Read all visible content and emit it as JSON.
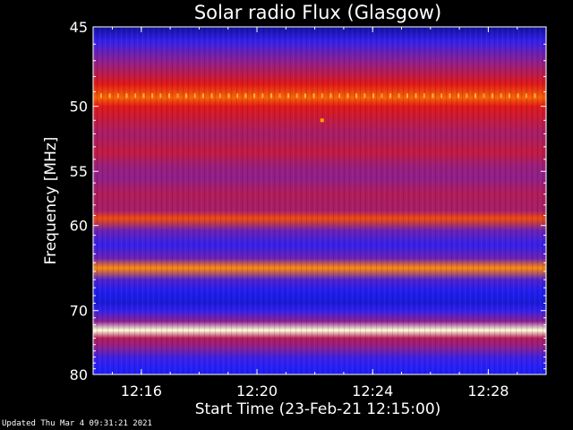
{
  "chart_data": {
    "type": "heatmap",
    "title": "Solar radio Flux (Glasgow)",
    "xlabel": "Start Time (23-Feb-21 12:15:00)",
    "ylabel": "Frequency [MHz]",
    "x_unit": "time",
    "x_range": [
      "12:14:20",
      "12:30:00"
    ],
    "xticks": [
      "12:16",
      "12:20",
      "12:24",
      "12:28"
    ],
    "yticks": [
      45,
      50,
      55,
      60,
      70,
      80
    ],
    "ylim": [
      45,
      80
    ],
    "y_scale": "reciprocal",
    "colormap": [
      "#0a0a70",
      "#2020ff",
      "#8020a0",
      "#e01818",
      "#ff8000",
      "#ffff80",
      "#ffffff"
    ],
    "bands": [
      {
        "freq_mhz": 45.0,
        "intensity": 0.05
      },
      {
        "freq_mhz": 45.8,
        "intensity": 0.2
      },
      {
        "freq_mhz": 47.0,
        "intensity": 0.35
      },
      {
        "freq_mhz": 48.5,
        "intensity": 0.5
      },
      {
        "freq_mhz": 49.4,
        "intensity": 0.62
      },
      {
        "freq_mhz": 50.0,
        "intensity": 0.5
      },
      {
        "freq_mhz": 51.0,
        "intensity": 0.45
      },
      {
        "freq_mhz": 52.0,
        "intensity": 0.4
      },
      {
        "freq_mhz": 53.5,
        "intensity": 0.45
      },
      {
        "freq_mhz": 54.5,
        "intensity": 0.38
      },
      {
        "freq_mhz": 55.5,
        "intensity": 0.36
      },
      {
        "freq_mhz": 57.0,
        "intensity": 0.42
      },
      {
        "freq_mhz": 58.5,
        "intensity": 0.4
      },
      {
        "freq_mhz": 59.3,
        "intensity": 0.58
      },
      {
        "freq_mhz": 60.5,
        "intensity": 0.3
      },
      {
        "freq_mhz": 62.0,
        "intensity": 0.2
      },
      {
        "freq_mhz": 63.5,
        "intensity": 0.3
      },
      {
        "freq_mhz": 64.6,
        "intensity": 0.68
      },
      {
        "freq_mhz": 66.0,
        "intensity": 0.25
      },
      {
        "freq_mhz": 67.5,
        "intensity": 0.15
      },
      {
        "freq_mhz": 69.0,
        "intensity": 0.12
      },
      {
        "freq_mhz": 70.0,
        "intensity": 0.2
      },
      {
        "freq_mhz": 71.5,
        "intensity": 0.35
      },
      {
        "freq_mhz": 72.8,
        "intensity": 0.95
      },
      {
        "freq_mhz": 74.0,
        "intensity": 0.42
      },
      {
        "freq_mhz": 75.5,
        "intensity": 0.35
      },
      {
        "freq_mhz": 77.0,
        "intensity": 0.22
      },
      {
        "freq_mhz": 78.5,
        "intensity": 0.18
      },
      {
        "freq_mhz": 80.0,
        "intensity": 0.15
      }
    ],
    "periodic_bursts": {
      "freq_mhz": 49.3,
      "count": 52,
      "color": "#ffb030"
    },
    "hotspot": {
      "time": "12:22:15",
      "freq_mhz": 51.0,
      "color": "#ffa000"
    }
  },
  "footer": {
    "updated": "Updated Thu Mar  4 09:31:21 2021"
  }
}
